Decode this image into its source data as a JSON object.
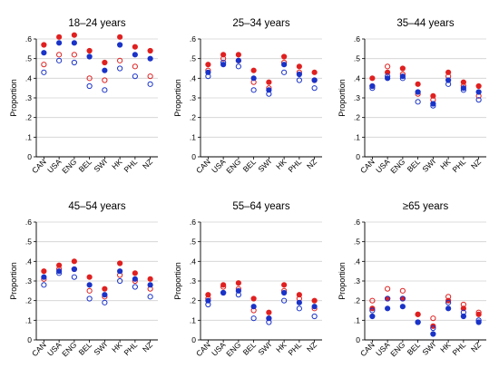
{
  "colors": {
    "outer_bg": "#ffffff",
    "panel_bg": "#ffffff",
    "plot_bg": "#ffffff",
    "grid": "#d0d0d0",
    "axis": "#000000",
    "series_blue": "#1a33c8",
    "series_red": "#e02020"
  },
  "chart_data": [
    {
      "type": "scatter",
      "title": "18–24 years",
      "ylabel": "Proportion",
      "xlabel": "",
      "categories": [
        "CAN",
        "USA",
        "ENG",
        "BEL",
        "SWI",
        "HK",
        "PHL",
        "NZ"
      ],
      "ylim": [
        0,
        0.6
      ],
      "yticks": [
        "0",
        ".1",
        ".2",
        ".3",
        ".4",
        ".5",
        ".6"
      ],
      "grid": true,
      "series": [
        {
          "marker": "filled",
          "color": "red",
          "values": [
            0.57,
            0.61,
            0.62,
            0.54,
            0.48,
            0.61,
            0.56,
            0.54
          ]
        },
        {
          "marker": "hollow",
          "color": "red",
          "values": [
            0.47,
            0.52,
            0.52,
            0.4,
            0.39,
            0.49,
            0.46,
            0.41
          ]
        },
        {
          "marker": "filled",
          "color": "blue",
          "values": [
            0.53,
            0.58,
            0.58,
            0.51,
            0.44,
            0.57,
            0.52,
            0.5
          ]
        },
        {
          "marker": "hollow",
          "color": "blue",
          "values": [
            0.43,
            0.49,
            0.48,
            0.36,
            0.34,
            0.45,
            0.41,
            0.37
          ]
        }
      ]
    },
    {
      "type": "scatter",
      "title": "25–34 years",
      "ylabel": "Proportion",
      "xlabel": "",
      "categories": [
        "CAN",
        "USA",
        "ENG",
        "BEL",
        "SWI",
        "HK",
        "PHL",
        "NZ"
      ],
      "ylim": [
        0,
        0.6
      ],
      "yticks": [
        "0",
        ".1",
        ".2",
        ".3",
        ".4",
        ".5",
        ".6"
      ],
      "grid": true,
      "series": [
        {
          "marker": "filled",
          "color": "red",
          "values": [
            0.47,
            0.52,
            0.52,
            0.44,
            0.38,
            0.51,
            0.46,
            0.43
          ]
        },
        {
          "marker": "hollow",
          "color": "red",
          "values": [
            0.44,
            0.5,
            0.49,
            0.38,
            0.35,
            0.48,
            0.43,
            0.39
          ]
        },
        {
          "marker": "filled",
          "color": "blue",
          "values": [
            0.43,
            0.47,
            0.49,
            0.4,
            0.34,
            0.47,
            0.42,
            0.39
          ]
        },
        {
          "marker": "hollow",
          "color": "blue",
          "values": [
            0.41,
            0.48,
            0.46,
            0.34,
            0.32,
            0.43,
            0.39,
            0.35
          ]
        }
      ]
    },
    {
      "type": "scatter",
      "title": "35–44 years",
      "ylabel": "Proportion",
      "xlabel": "",
      "categories": [
        "CAN",
        "USA",
        "ENG",
        "BEL",
        "SWI",
        "HK",
        "PHL",
        "NZ"
      ],
      "ylim": [
        0,
        0.6
      ],
      "yticks": [
        "0",
        ".1",
        ".2",
        ".3",
        ".4",
        ".5",
        ".6"
      ],
      "grid": true,
      "series": [
        {
          "marker": "filled",
          "color": "red",
          "values": [
            0.4,
            0.43,
            0.45,
            0.37,
            0.31,
            0.43,
            0.38,
            0.36
          ]
        },
        {
          "marker": "hollow",
          "color": "red",
          "values": [
            0.36,
            0.46,
            0.42,
            0.32,
            0.29,
            0.41,
            0.36,
            0.31
          ]
        },
        {
          "marker": "filled",
          "color": "blue",
          "values": [
            0.36,
            0.4,
            0.41,
            0.33,
            0.27,
            0.39,
            0.35,
            0.33
          ]
        },
        {
          "marker": "hollow",
          "color": "blue",
          "values": [
            0.35,
            0.41,
            0.4,
            0.28,
            0.26,
            0.37,
            0.34,
            0.29
          ]
        }
      ]
    },
    {
      "type": "scatter",
      "title": "45–54 years",
      "ylabel": "Proportion",
      "xlabel": "",
      "categories": [
        "CAN",
        "USA",
        "ENG",
        "BEL",
        "SWI",
        "HK",
        "PHL",
        "NZ"
      ],
      "ylim": [
        0,
        0.6
      ],
      "yticks": [
        "0",
        ".1",
        ".2",
        ".3",
        ".4",
        ".5",
        ".6"
      ],
      "grid": true,
      "series": [
        {
          "marker": "filled",
          "color": "red",
          "values": [
            0.35,
            0.38,
            0.4,
            0.32,
            0.26,
            0.39,
            0.34,
            0.31
          ]
        },
        {
          "marker": "hollow",
          "color": "red",
          "values": [
            0.31,
            0.36,
            0.36,
            0.25,
            0.22,
            0.33,
            0.3,
            0.26
          ]
        },
        {
          "marker": "filled",
          "color": "blue",
          "values": [
            0.32,
            0.35,
            0.36,
            0.28,
            0.23,
            0.35,
            0.31,
            0.28
          ]
        },
        {
          "marker": "hollow",
          "color": "blue",
          "values": [
            0.28,
            0.34,
            0.32,
            0.21,
            0.19,
            0.3,
            0.27,
            0.22
          ]
        }
      ]
    },
    {
      "type": "scatter",
      "title": "55–64 years",
      "ylabel": "Proportion",
      "xlabel": "",
      "categories": [
        "CAN",
        "USA",
        "ENG",
        "BEL",
        "SWI",
        "HK",
        "PHL",
        "NZ"
      ],
      "ylim": [
        0,
        0.6
      ],
      "yticks": [
        "0",
        ".1",
        ".2",
        ".3",
        ".4",
        ".5",
        ".6"
      ],
      "grid": true,
      "series": [
        {
          "marker": "filled",
          "color": "red",
          "values": [
            0.23,
            0.28,
            0.29,
            0.21,
            0.14,
            0.28,
            0.23,
            0.2
          ]
        },
        {
          "marker": "hollow",
          "color": "red",
          "values": [
            0.21,
            0.27,
            0.26,
            0.15,
            0.11,
            0.25,
            0.21,
            0.16
          ]
        },
        {
          "marker": "filled",
          "color": "blue",
          "values": [
            0.2,
            0.24,
            0.25,
            0.17,
            0.11,
            0.24,
            0.19,
            0.17
          ]
        },
        {
          "marker": "hollow",
          "color": "blue",
          "values": [
            0.18,
            0.24,
            0.23,
            0.11,
            0.09,
            0.2,
            0.16,
            0.12
          ]
        }
      ]
    },
    {
      "type": "scatter",
      "title": "≥65 years",
      "ylabel": "Proportion",
      "xlabel": "",
      "categories": [
        "CAN",
        "USA",
        "ENG",
        "BEL",
        "SWI",
        "HK",
        "PHL",
        "NZ"
      ],
      "ylim": [
        0,
        0.6
      ],
      "yticks": [
        "0",
        ".1",
        ".2",
        ".3",
        ".4",
        ".5",
        ".6"
      ],
      "grid": true,
      "series": [
        {
          "marker": "filled",
          "color": "red",
          "values": [
            0.16,
            0.21,
            0.21,
            0.13,
            0.07,
            0.2,
            0.16,
            0.13
          ]
        },
        {
          "marker": "hollow",
          "color": "red",
          "values": [
            0.2,
            0.26,
            0.25,
            0.13,
            0.11,
            0.22,
            0.18,
            0.14
          ]
        },
        {
          "marker": "filled",
          "color": "blue",
          "values": [
            0.12,
            0.16,
            0.17,
            0.09,
            0.03,
            0.16,
            0.12,
            0.09
          ]
        },
        {
          "marker": "hollow",
          "color": "blue",
          "values": [
            0.15,
            0.21,
            0.21,
            0.09,
            0.06,
            0.19,
            0.14,
            0.1
          ]
        }
      ]
    }
  ]
}
